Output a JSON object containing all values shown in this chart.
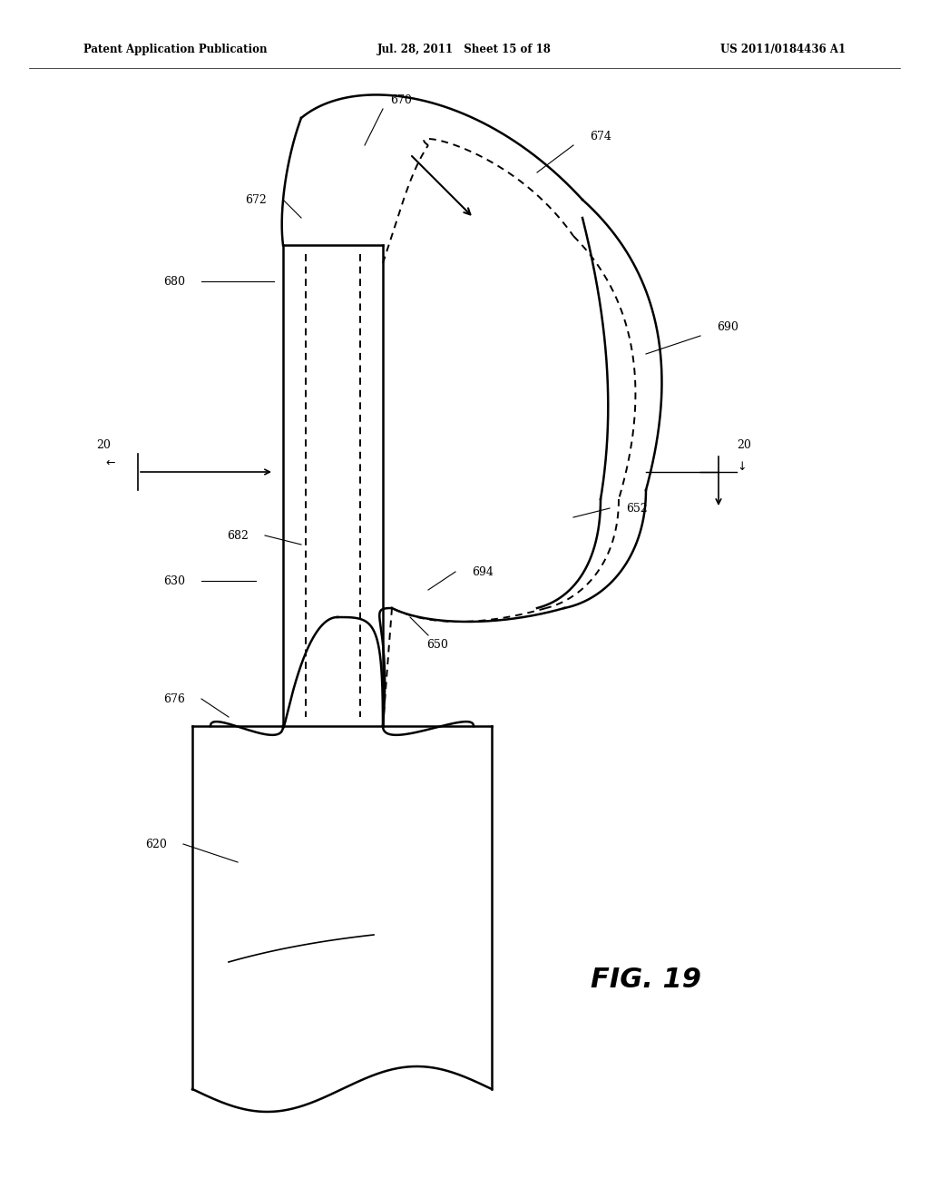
{
  "bg_color": "#ffffff",
  "header_left": "Patent Application Publication",
  "header_mid": "Jul. 28, 2011   Sheet 15 of 18",
  "header_right": "US 2011/0184436 A1",
  "fig_label": "FIG. 19",
  "lc": "#000000",
  "lw": 1.8,
  "dlw": 1.4
}
